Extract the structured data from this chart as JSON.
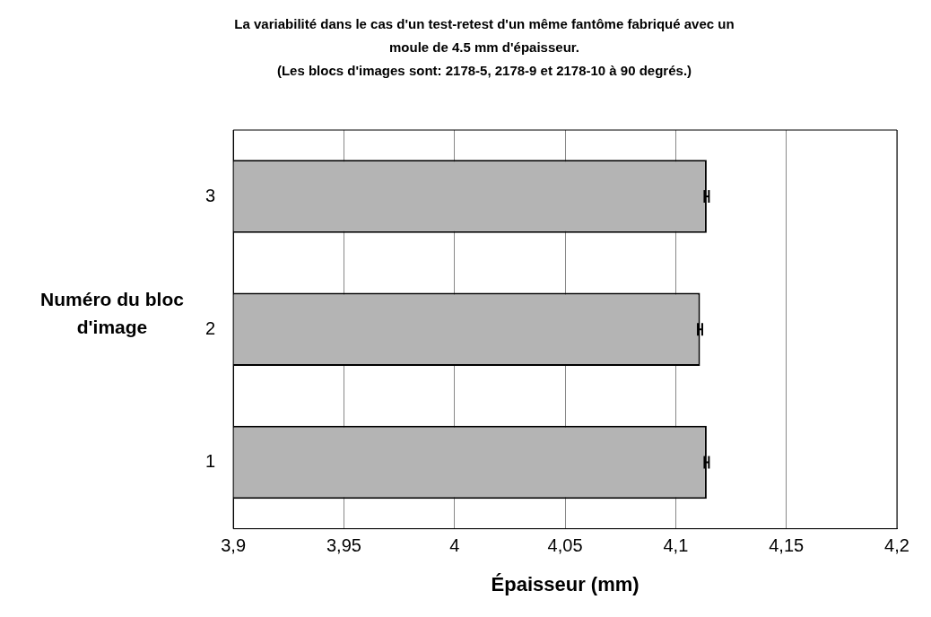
{
  "chart_data": {
    "type": "bar",
    "orientation": "horizontal",
    "title": "La variabilité dans le cas d'un test-retest d'un même fantôme fabriqué avec un moule de 4.5 mm d'épaisseur.",
    "subtitle": "(Les blocs d'images sont:  2178-5, 2178-9 et 2178-10 à 90 degrés.)",
    "xlabel": "Épaisseur (mm)",
    "ylabel": "Numéro du bloc d'image",
    "categories": [
      "3",
      "2",
      "1"
    ],
    "values": [
      4.114,
      4.111,
      4.114
    ],
    "errors": [
      0.001,
      0.001,
      0.001
    ],
    "color": "#b4b4b4",
    "xlim": [
      3.9,
      4.2
    ],
    "xticks": [
      {
        "value": 3.9,
        "label": "3,9"
      },
      {
        "value": 3.95,
        "label": "3,95"
      },
      {
        "value": 4,
        "label": "4"
      },
      {
        "value": 4.05,
        "label": "4,05"
      },
      {
        "value": 4.1,
        "label": "4,1"
      },
      {
        "value": 4.15,
        "label": "4,15"
      },
      {
        "value": 4.2,
        "label": "4,2"
      }
    ],
    "grid": "x",
    "legend": false
  }
}
